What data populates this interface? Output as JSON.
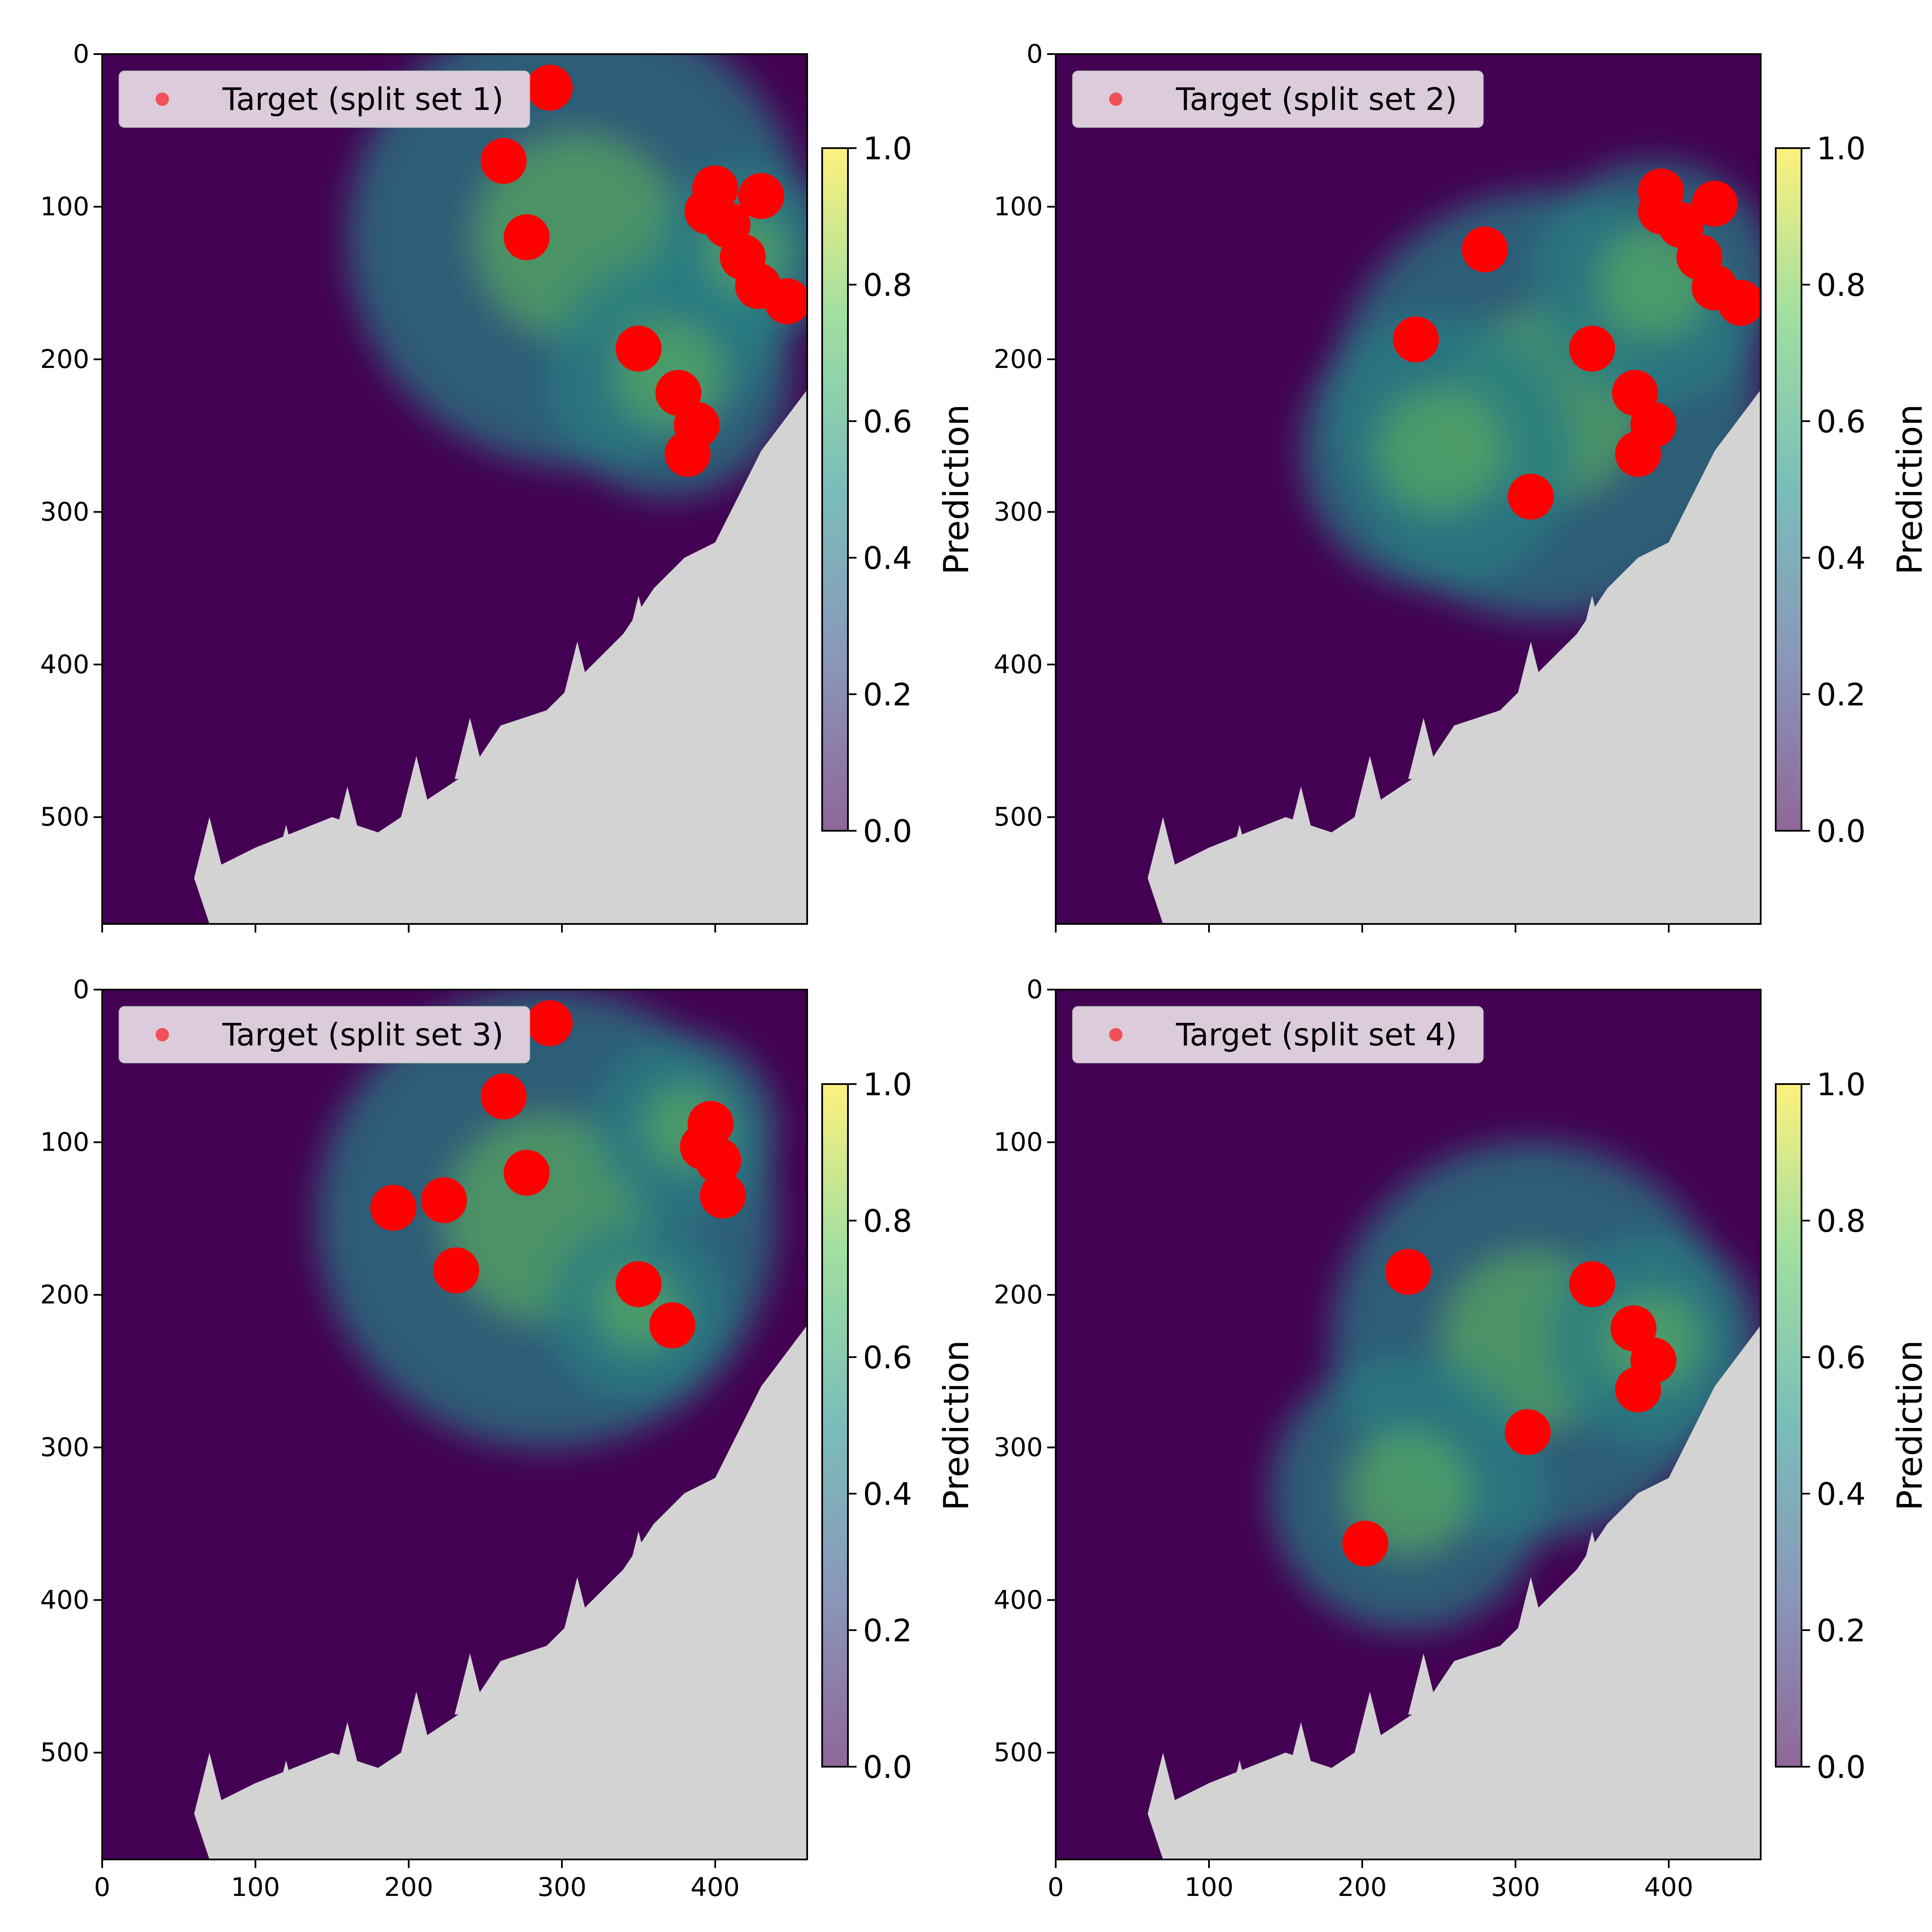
{
  "figure": {
    "colors": {
      "background": "#440154",
      "land": "#d3d3d3",
      "target": "#ff0000",
      "legend_box": "#dccbdb"
    },
    "colormap": [
      "#440154",
      "#3b528b",
      "#21918c",
      "#5ec962",
      "#fde725"
    ]
  },
  "chart_data": [
    {
      "type": "heatmap",
      "title": "",
      "xlabel": "",
      "ylabel": "",
      "xlim": [
        0,
        460
      ],
      "ylim": [
        570,
        0
      ],
      "xticks": [
        "0",
        "100",
        "200",
        "300",
        "400"
      ],
      "yticks": [
        "0",
        "100",
        "200",
        "300",
        "400",
        "500"
      ],
      "show_xtick_labels": false,
      "colorbar": {
        "label": "Prediction",
        "range": [
          0,
          1
        ],
        "ticks": [
          "0.0",
          "0.2",
          "0.4",
          "0.6",
          "0.8",
          "1.0"
        ]
      },
      "legend": {
        "label": "Target (split set 1)",
        "placement": "top-left"
      },
      "field": [
        {
          "x": 310,
          "y": 120,
          "r": 150
        },
        {
          "x": 370,
          "y": 210,
          "r": 80
        },
        {
          "x": 420,
          "y": 130,
          "r": 60
        }
      ],
      "targets": [
        {
          "x": 292,
          "y": 22
        },
        {
          "x": 262,
          "y": 70
        },
        {
          "x": 277,
          "y": 120
        },
        {
          "x": 400,
          "y": 88
        },
        {
          "x": 430,
          "y": 93
        },
        {
          "x": 395,
          "y": 103
        },
        {
          "x": 408,
          "y": 112
        },
        {
          "x": 418,
          "y": 133
        },
        {
          "x": 428,
          "y": 152
        },
        {
          "x": 447,
          "y": 162
        },
        {
          "x": 350,
          "y": 193
        },
        {
          "x": 376,
          "y": 222
        },
        {
          "x": 388,
          "y": 243
        },
        {
          "x": 382,
          "y": 262
        }
      ]
    },
    {
      "type": "heatmap",
      "title": "",
      "xlabel": "",
      "ylabel": "",
      "xlim": [
        0,
        460
      ],
      "ylim": [
        570,
        0
      ],
      "xticks": [
        "0",
        "100",
        "200",
        "300",
        "400"
      ],
      "yticks": [
        "0",
        "100",
        "200",
        "300",
        "400",
        "500"
      ],
      "show_xtick_labels": false,
      "colorbar": {
        "label": "Prediction",
        "range": [
          0,
          1
        ],
        "ticks": [
          "0.0",
          "0.2",
          "0.4",
          "0.6",
          "0.8",
          "1.0"
        ]
      },
      "legend": {
        "label": "Target (split set 2)",
        "placement": "top-left"
      },
      "field": [
        {
          "x": 320,
          "y": 230,
          "r": 140
        },
        {
          "x": 390,
          "y": 150,
          "r": 80
        },
        {
          "x": 250,
          "y": 260,
          "r": 90
        }
      ],
      "targets": [
        {
          "x": 395,
          "y": 90
        },
        {
          "x": 395,
          "y": 103
        },
        {
          "x": 430,
          "y": 98
        },
        {
          "x": 408,
          "y": 112
        },
        {
          "x": 420,
          "y": 133
        },
        {
          "x": 430,
          "y": 153
        },
        {
          "x": 447,
          "y": 163
        },
        {
          "x": 280,
          "y": 128
        },
        {
          "x": 235,
          "y": 187
        },
        {
          "x": 350,
          "y": 193
        },
        {
          "x": 378,
          "y": 222
        },
        {
          "x": 390,
          "y": 243
        },
        {
          "x": 380,
          "y": 262
        },
        {
          "x": 310,
          "y": 290
        }
      ]
    },
    {
      "type": "heatmap",
      "title": "",
      "xlabel": "",
      "ylabel": "",
      "xlim": [
        0,
        460
      ],
      "ylim": [
        570,
        0
      ],
      "xticks": [
        "0",
        "100",
        "200",
        "300",
        "400"
      ],
      "yticks": [
        "0",
        "100",
        "200",
        "300",
        "400",
        "500"
      ],
      "show_xtick_labels": true,
      "colorbar": {
        "label": "Prediction",
        "range": [
          0,
          1
        ],
        "ticks": [
          "0.0",
          "0.2",
          "0.4",
          "0.6",
          "0.8",
          "1.0"
        ]
      },
      "legend": {
        "label": "Target (split set 3)",
        "placement": "top-left"
      },
      "field": [
        {
          "x": 290,
          "y": 150,
          "r": 150
        },
        {
          "x": 350,
          "y": 210,
          "r": 60
        },
        {
          "x": 380,
          "y": 90,
          "r": 60
        }
      ],
      "targets": [
        {
          "x": 292,
          "y": 22
        },
        {
          "x": 262,
          "y": 70
        },
        {
          "x": 277,
          "y": 120
        },
        {
          "x": 190,
          "y": 143
        },
        {
          "x": 223,
          "y": 138
        },
        {
          "x": 231,
          "y": 184
        },
        {
          "x": 350,
          "y": 193
        },
        {
          "x": 372,
          "y": 220
        },
        {
          "x": 397,
          "y": 88
        },
        {
          "x": 392,
          "y": 103
        },
        {
          "x": 402,
          "y": 112
        },
        {
          "x": 405,
          "y": 135
        }
      ]
    },
    {
      "type": "heatmap",
      "title": "",
      "xlabel": "",
      "ylabel": "",
      "xlim": [
        0,
        460
      ],
      "ylim": [
        570,
        0
      ],
      "xticks": [
        "0",
        "100",
        "200",
        "300",
        "400"
      ],
      "yticks": [
        "0",
        "100",
        "200",
        "300",
        "400",
        "500"
      ],
      "show_xtick_labels": true,
      "colorbar": {
        "label": "Prediction",
        "range": [
          0,
          1
        ],
        "ticks": [
          "0.0",
          "0.2",
          "0.4",
          "0.6",
          "0.8",
          "1.0"
        ]
      },
      "legend": {
        "label": "Target (split set 4)",
        "placement": "top-left"
      },
      "field": [
        {
          "x": 310,
          "y": 230,
          "r": 130
        },
        {
          "x": 230,
          "y": 330,
          "r": 90
        },
        {
          "x": 390,
          "y": 230,
          "r": 70
        }
      ],
      "targets": [
        {
          "x": 230,
          "y": 185
        },
        {
          "x": 350,
          "y": 193
        },
        {
          "x": 377,
          "y": 222
        },
        {
          "x": 390,
          "y": 243
        },
        {
          "x": 380,
          "y": 262
        },
        {
          "x": 308,
          "y": 290
        },
        {
          "x": 202,
          "y": 363
        }
      ]
    }
  ]
}
